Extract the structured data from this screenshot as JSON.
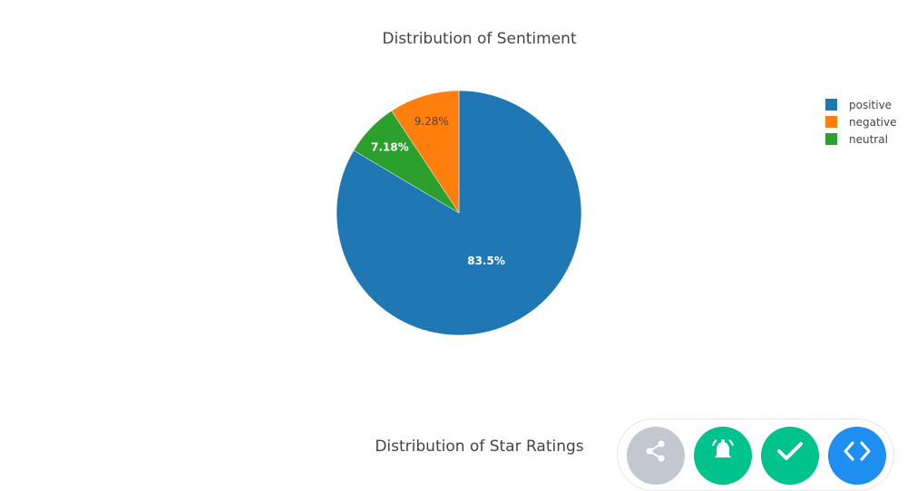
{
  "chart_data": {
    "type": "pie",
    "title": "Distribution of Sentiment",
    "slices": [
      {
        "label": "positive",
        "value": 83.5,
        "text": "83.5%",
        "color": "#1f77b4",
        "text_color": "#ffffff"
      },
      {
        "label": "neutral",
        "value": 7.18,
        "text": "7.18%",
        "color": "#2ca02c",
        "text_color": "#ffffff"
      },
      {
        "label": "negative",
        "value": 9.28,
        "text": "9.28%",
        "color": "#ff7f0e",
        "text_color": "#444444"
      }
    ],
    "legend": [
      "positive",
      "negative",
      "neutral"
    ],
    "legend_colors": [
      "#1f77b4",
      "#ff7f0e",
      "#2ca02c"
    ],
    "legend_position": "top-right"
  },
  "second_chart": {
    "title": "Distribution of Star Ratings"
  },
  "toolbar": {
    "buttons": [
      {
        "icon": "share-icon",
        "color": "#c2c7d0"
      },
      {
        "icon": "bell-icon",
        "color": "#00c28c"
      },
      {
        "icon": "check-icon",
        "color": "#00c28c"
      },
      {
        "icon": "code-icon",
        "color": "#1f8ef1"
      }
    ]
  }
}
